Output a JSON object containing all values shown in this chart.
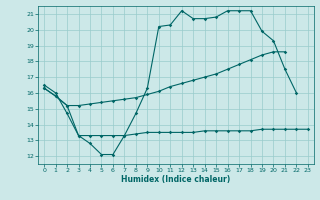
{
  "title": "",
  "xlabel": "Humidex (Indice chaleur)",
  "bg_color": "#cce8e8",
  "line_color": "#006666",
  "grid_color": "#99cccc",
  "xlim": [
    -0.5,
    23.5
  ],
  "ylim": [
    11.5,
    21.5
  ],
  "xticks": [
    0,
    1,
    2,
    3,
    4,
    5,
    6,
    7,
    8,
    9,
    10,
    11,
    12,
    13,
    14,
    15,
    16,
    17,
    18,
    19,
    20,
    21,
    22,
    23
  ],
  "yticks": [
    12,
    13,
    14,
    15,
    16,
    17,
    18,
    19,
    20,
    21
  ],
  "line1_x": [
    0,
    1,
    2,
    3,
    4,
    5,
    6,
    7,
    8,
    9,
    10,
    11,
    12,
    13,
    14,
    15,
    16,
    17,
    18,
    19,
    20,
    21,
    22
  ],
  "line1_y": [
    16.5,
    16.0,
    14.7,
    13.3,
    12.8,
    12.1,
    12.1,
    13.3,
    14.7,
    16.3,
    20.2,
    20.3,
    21.2,
    20.7,
    20.7,
    20.8,
    21.2,
    21.2,
    21.2,
    19.9,
    19.3,
    17.5,
    16.0
  ],
  "line2_x": [
    0,
    1,
    2,
    3,
    4,
    5,
    6,
    7,
    8,
    9,
    10,
    11,
    12,
    13,
    14,
    15,
    16,
    17,
    18,
    19,
    20,
    21
  ],
  "line2_y": [
    16.3,
    15.8,
    15.2,
    15.2,
    15.3,
    15.4,
    15.5,
    15.6,
    15.7,
    15.9,
    16.1,
    16.4,
    16.6,
    16.8,
    17.0,
    17.2,
    17.5,
    17.8,
    18.1,
    18.4,
    18.6,
    18.6
  ],
  "line3_x": [
    0,
    1,
    2,
    3,
    4,
    5,
    6,
    7,
    8,
    9,
    10,
    11,
    12,
    13,
    14,
    15,
    16,
    17,
    18,
    19,
    20,
    21,
    22,
    23
  ],
  "line3_y": [
    16.3,
    15.8,
    15.2,
    13.3,
    13.3,
    13.3,
    13.3,
    13.3,
    13.4,
    13.5,
    13.5,
    13.5,
    13.5,
    13.5,
    13.6,
    13.6,
    13.6,
    13.6,
    13.6,
    13.7,
    13.7,
    13.7,
    13.7,
    13.7
  ]
}
